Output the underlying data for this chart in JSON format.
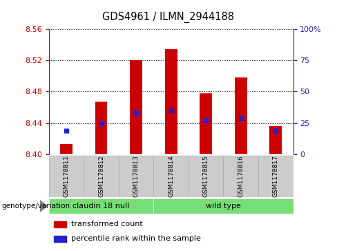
{
  "title": "GDS4961 / ILMN_2944188",
  "samples": [
    "GSM1178811",
    "GSM1178812",
    "GSM1178813",
    "GSM1178814",
    "GSM1178815",
    "GSM1178816",
    "GSM1178817"
  ],
  "transformed_count": [
    8.413,
    8.467,
    8.52,
    8.534,
    8.478,
    8.498,
    8.436
  ],
  "percentile_rank": [
    19,
    25,
    33,
    35,
    27,
    29,
    19
  ],
  "bar_bottom": 8.4,
  "ylim_left": [
    8.4,
    8.56
  ],
  "ylim_right": [
    0,
    100
  ],
  "yticks_left": [
    8.4,
    8.44,
    8.48,
    8.52,
    8.56
  ],
  "yticks_right": [
    0,
    25,
    50,
    75,
    100
  ],
  "ytick_labels_right": [
    "0",
    "25",
    "50",
    "75",
    "100%"
  ],
  "bar_color": "#cc0000",
  "percentile_color": "#2222cc",
  "groups": [
    {
      "label": "claudin 18 null",
      "start": 0,
      "end": 3
    },
    {
      "label": "wild type",
      "start": 3,
      "end": 7
    }
  ],
  "group_color": "#77dd77",
  "group_label_prefix": "genotype/variation",
  "legend_items": [
    {
      "color": "#cc0000",
      "label": "transformed count"
    },
    {
      "color": "#2222cc",
      "label": "percentile rank within the sample"
    }
  ],
  "bar_width": 0.35,
  "left_axis_color": "#cc0000",
  "right_axis_color": "#2222cc",
  "cell_color": "#cccccc",
  "cell_edge_color": "#aaaaaa"
}
